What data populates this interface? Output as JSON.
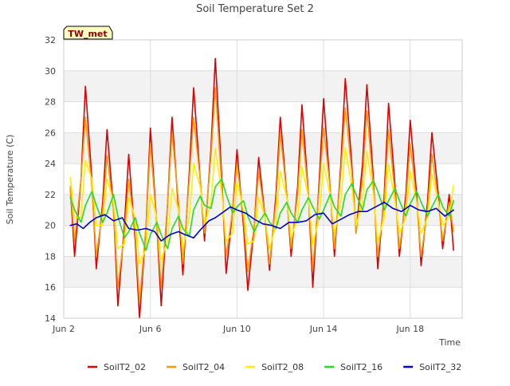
{
  "colors": {
    "SoilT2_02": "#dd0000",
    "SoilT2_04": "#ff9900",
    "SoilT2_08": "#ffee00",
    "SoilT2_16": "#22dd22",
    "SoilT2_32": "#0000cc",
    "badge_bg": "#ffffbf",
    "badge_text": "#880000",
    "band": "#f2f2f2",
    "grid": "#dddddd"
  },
  "chart_data": {
    "type": "line",
    "title": "Soil Temperature Set 2",
    "xlabel": "Time",
    "ylabel": "Soil Temperature (C)",
    "badge": "TW_met",
    "ylim": [
      14,
      32
    ],
    "xlim": [
      2,
      20.4
    ],
    "yticks": [
      14,
      16,
      18,
      20,
      22,
      24,
      26,
      28,
      30,
      32
    ],
    "xticks": [
      {
        "value": 2,
        "label": "Jun 2"
      },
      {
        "value": 6,
        "label": "Jun 6"
      },
      {
        "value": 10,
        "label": "Jun 10"
      },
      {
        "value": 14,
        "label": "Jun 14"
      },
      {
        "value": 18,
        "label": "Jun 18"
      }
    ],
    "grid": true,
    "legend_position": "bottom",
    "x_unit": "day of June",
    "series": [
      {
        "name": "SoilT2_02",
        "x": [
          2.3,
          2.5,
          2.8,
          3.0,
          3.3,
          3.5,
          3.8,
          4.0,
          4.3,
          4.5,
          4.8,
          5.0,
          5.3,
          5.5,
          5.8,
          6.0,
          6.3,
          6.5,
          6.8,
          7.0,
          7.3,
          7.5,
          7.8,
          8.0,
          8.3,
          8.5,
          8.8,
          9.0,
          9.3,
          9.5,
          9.8,
          10.0,
          10.3,
          10.5,
          10.8,
          11.0,
          11.3,
          11.5,
          11.8,
          12.0,
          12.3,
          12.5,
          12.8,
          13.0,
          13.3,
          13.5,
          13.8,
          14.0,
          14.3,
          14.5,
          14.8,
          15.0,
          15.3,
          15.5,
          15.8,
          16.0,
          16.3,
          16.5,
          16.8,
          17.0,
          17.3,
          17.5,
          17.8,
          18.0,
          18.3,
          18.5,
          18.8,
          19.0,
          19.3,
          19.5,
          19.8,
          20.0
        ],
        "y": [
          22.5,
          18.0,
          23.0,
          29.0,
          23.0,
          17.2,
          21.5,
          26.2,
          21.0,
          14.8,
          20.0,
          24.6,
          19.0,
          14.0,
          20.0,
          26.3,
          20.0,
          14.8,
          21.5,
          27.0,
          21.0,
          16.8,
          23.5,
          28.9,
          23.0,
          19.0,
          25.0,
          30.8,
          23.0,
          16.9,
          21.0,
          24.9,
          20.0,
          15.8,
          20.0,
          24.4,
          20.5,
          17.1,
          22.0,
          27.0,
          22.0,
          18.0,
          22.5,
          27.8,
          22.0,
          16.0,
          23.0,
          28.2,
          22.5,
          18.0,
          24.0,
          29.5,
          24.0,
          19.5,
          24.0,
          29.1,
          23.0,
          17.2,
          22.0,
          27.9,
          22.5,
          18.0,
          22.0,
          26.8,
          22.0,
          17.4,
          21.5,
          26.0,
          22.0,
          18.5,
          22.0,
          18.4
        ]
      },
      {
        "name": "SoilT2_04",
        "x": [
          2.3,
          2.5,
          2.8,
          3.0,
          3.3,
          3.5,
          3.8,
          4.0,
          4.3,
          4.5,
          4.8,
          5.0,
          5.3,
          5.5,
          5.8,
          6.0,
          6.3,
          6.5,
          6.8,
          7.0,
          7.3,
          7.5,
          7.8,
          8.0,
          8.3,
          8.5,
          8.8,
          9.0,
          9.3,
          9.5,
          9.8,
          10.0,
          10.3,
          10.5,
          10.8,
          11.0,
          11.3,
          11.5,
          11.8,
          12.0,
          12.3,
          12.5,
          12.8,
          13.0,
          13.3,
          13.5,
          13.8,
          14.0,
          14.3,
          14.5,
          14.8,
          15.0,
          15.3,
          15.5,
          15.8,
          16.0,
          16.3,
          16.5,
          16.8,
          17.0,
          17.3,
          17.5,
          17.8,
          18.0,
          18.3,
          18.5,
          18.8,
          19.0,
          19.3,
          19.5,
          19.8,
          20.0
        ],
        "y": [
          22.5,
          19.0,
          23.0,
          27.0,
          22.5,
          18.0,
          21.0,
          24.5,
          21.0,
          16.0,
          19.5,
          23.0,
          19.5,
          15.0,
          20.0,
          25.3,
          20.0,
          16.0,
          21.5,
          26.0,
          21.5,
          17.5,
          23.0,
          27.0,
          23.0,
          19.5,
          24.5,
          28.9,
          22.5,
          18.0,
          21.0,
          24.0,
          20.5,
          17.0,
          20.0,
          23.5,
          20.5,
          17.5,
          21.5,
          26.0,
          22.0,
          18.5,
          22.0,
          26.2,
          22.0,
          17.2,
          22.5,
          26.3,
          22.5,
          18.5,
          23.5,
          27.6,
          23.5,
          19.5,
          23.0,
          27.4,
          22.5,
          18.0,
          21.5,
          26.2,
          22.0,
          18.5,
          21.5,
          25.3,
          21.5,
          18.0,
          21.0,
          24.6,
          21.5,
          19.0,
          21.5,
          19.6
        ]
      },
      {
        "name": "SoilT2_08",
        "x": [
          2.3,
          2.5,
          2.8,
          3.0,
          3.3,
          3.5,
          3.8,
          4.0,
          4.3,
          4.5,
          4.8,
          5.0,
          5.3,
          5.5,
          5.8,
          6.0,
          6.3,
          6.5,
          6.8,
          7.0,
          7.3,
          7.5,
          7.8,
          8.0,
          8.3,
          8.5,
          8.8,
          9.0,
          9.3,
          9.5,
          9.8,
          10.0,
          10.3,
          10.5,
          10.8,
          11.0,
          11.3,
          11.5,
          11.8,
          12.0,
          12.3,
          12.5,
          12.8,
          13.0,
          13.3,
          13.5,
          13.8,
          14.0,
          14.3,
          14.5,
          14.8,
          15.0,
          15.3,
          15.5,
          15.8,
          16.0,
          16.3,
          16.5,
          16.8,
          17.0,
          17.3,
          17.5,
          17.8,
          18.0,
          18.3,
          18.5,
          18.8,
          19.0,
          19.3,
          19.5,
          19.8,
          20.0
        ],
        "y": [
          23.1,
          20.5,
          20.5,
          24.2,
          23.0,
          20.0,
          20.0,
          23.0,
          21.5,
          18.5,
          18.8,
          21.8,
          20.5,
          17.5,
          18.5,
          22.0,
          20.5,
          17.8,
          19.0,
          22.4,
          21.0,
          18.5,
          20.5,
          24.0,
          22.5,
          20.0,
          21.5,
          25.0,
          22.0,
          19.0,
          19.5,
          22.8,
          21.0,
          18.8,
          19.0,
          21.8,
          20.5,
          18.5,
          20.0,
          23.5,
          21.8,
          19.2,
          20.5,
          23.8,
          21.8,
          18.8,
          20.5,
          24.0,
          22.0,
          19.5,
          21.5,
          25.0,
          22.5,
          20.0,
          21.5,
          24.8,
          22.0,
          19.0,
          20.5,
          24.0,
          21.5,
          19.5,
          20.5,
          23.5,
          21.5,
          19.5,
          20.5,
          23.3,
          21.5,
          20.0,
          20.5,
          22.6
        ]
      },
      {
        "name": "SoilT2_16",
        "x": [
          2.3,
          2.5,
          2.8,
          3.0,
          3.3,
          3.5,
          3.8,
          4.0,
          4.3,
          4.5,
          4.8,
          5.0,
          5.3,
          5.5,
          5.8,
          6.0,
          6.3,
          6.5,
          6.8,
          7.0,
          7.3,
          7.5,
          7.8,
          8.0,
          8.3,
          8.5,
          8.8,
          9.0,
          9.3,
          9.5,
          9.8,
          10.0,
          10.3,
          10.5,
          10.8,
          11.0,
          11.3,
          11.5,
          11.8,
          12.0,
          12.3,
          12.5,
          12.8,
          13.0,
          13.3,
          13.5,
          13.8,
          14.0,
          14.3,
          14.5,
          14.8,
          15.0,
          15.3,
          15.5,
          15.8,
          16.0,
          16.3,
          16.5,
          16.8,
          17.0,
          17.3,
          17.5,
          17.8,
          18.0,
          18.3,
          18.5,
          18.8,
          19.0,
          19.3,
          19.5,
          19.8,
          20.0
        ],
        "y": [
          21.8,
          21.0,
          20.2,
          21.3,
          22.2,
          21.3,
          20.2,
          20.8,
          22.0,
          20.6,
          19.2,
          19.6,
          20.5,
          19.5,
          18.4,
          19.4,
          20.2,
          19.4,
          18.5,
          19.8,
          20.6,
          19.8,
          19.3,
          21.0,
          21.9,
          21.3,
          21.1,
          22.5,
          23.0,
          22.0,
          20.8,
          21.2,
          21.6,
          20.6,
          19.6,
          20.2,
          20.8,
          20.2,
          19.8,
          20.8,
          21.5,
          20.8,
          20.2,
          21.0,
          21.8,
          21.2,
          20.4,
          21.0,
          22.0,
          21.2,
          20.6,
          22.0,
          22.7,
          22.0,
          21.0,
          22.3,
          22.9,
          22.2,
          21.0,
          21.6,
          22.4,
          21.6,
          20.6,
          21.4,
          22.2,
          21.5,
          20.6,
          21.2,
          22.0,
          21.2,
          20.6,
          21.6
        ]
      },
      {
        "name": "SoilT2_32",
        "x": [
          2.3,
          2.6,
          2.9,
          3.2,
          3.5,
          3.9,
          4.3,
          4.7,
          5.0,
          5.4,
          5.8,
          6.2,
          6.5,
          6.9,
          7.3,
          7.6,
          8.0,
          8.3,
          8.7,
          9.0,
          9.3,
          9.7,
          10.0,
          10.4,
          10.8,
          11.2,
          11.6,
          12.0,
          12.4,
          12.8,
          13.2,
          13.6,
          14.0,
          14.4,
          14.8,
          15.2,
          15.6,
          16.0,
          16.4,
          16.8,
          17.2,
          17.6,
          18.0,
          18.4,
          18.8,
          19.2,
          19.6,
          20.0
        ],
        "y": [
          20.0,
          20.1,
          19.8,
          20.2,
          20.5,
          20.7,
          20.3,
          20.5,
          19.8,
          19.7,
          19.8,
          19.6,
          19.0,
          19.4,
          19.6,
          19.4,
          19.2,
          19.7,
          20.3,
          20.5,
          20.8,
          21.2,
          21.0,
          20.8,
          20.4,
          20.1,
          20.0,
          19.8,
          20.2,
          20.2,
          20.3,
          20.7,
          20.8,
          20.1,
          20.4,
          20.7,
          20.9,
          20.9,
          21.2,
          21.5,
          21.1,
          20.9,
          21.3,
          21.0,
          20.9,
          21.1,
          20.6,
          21.0
        ]
      }
    ]
  }
}
